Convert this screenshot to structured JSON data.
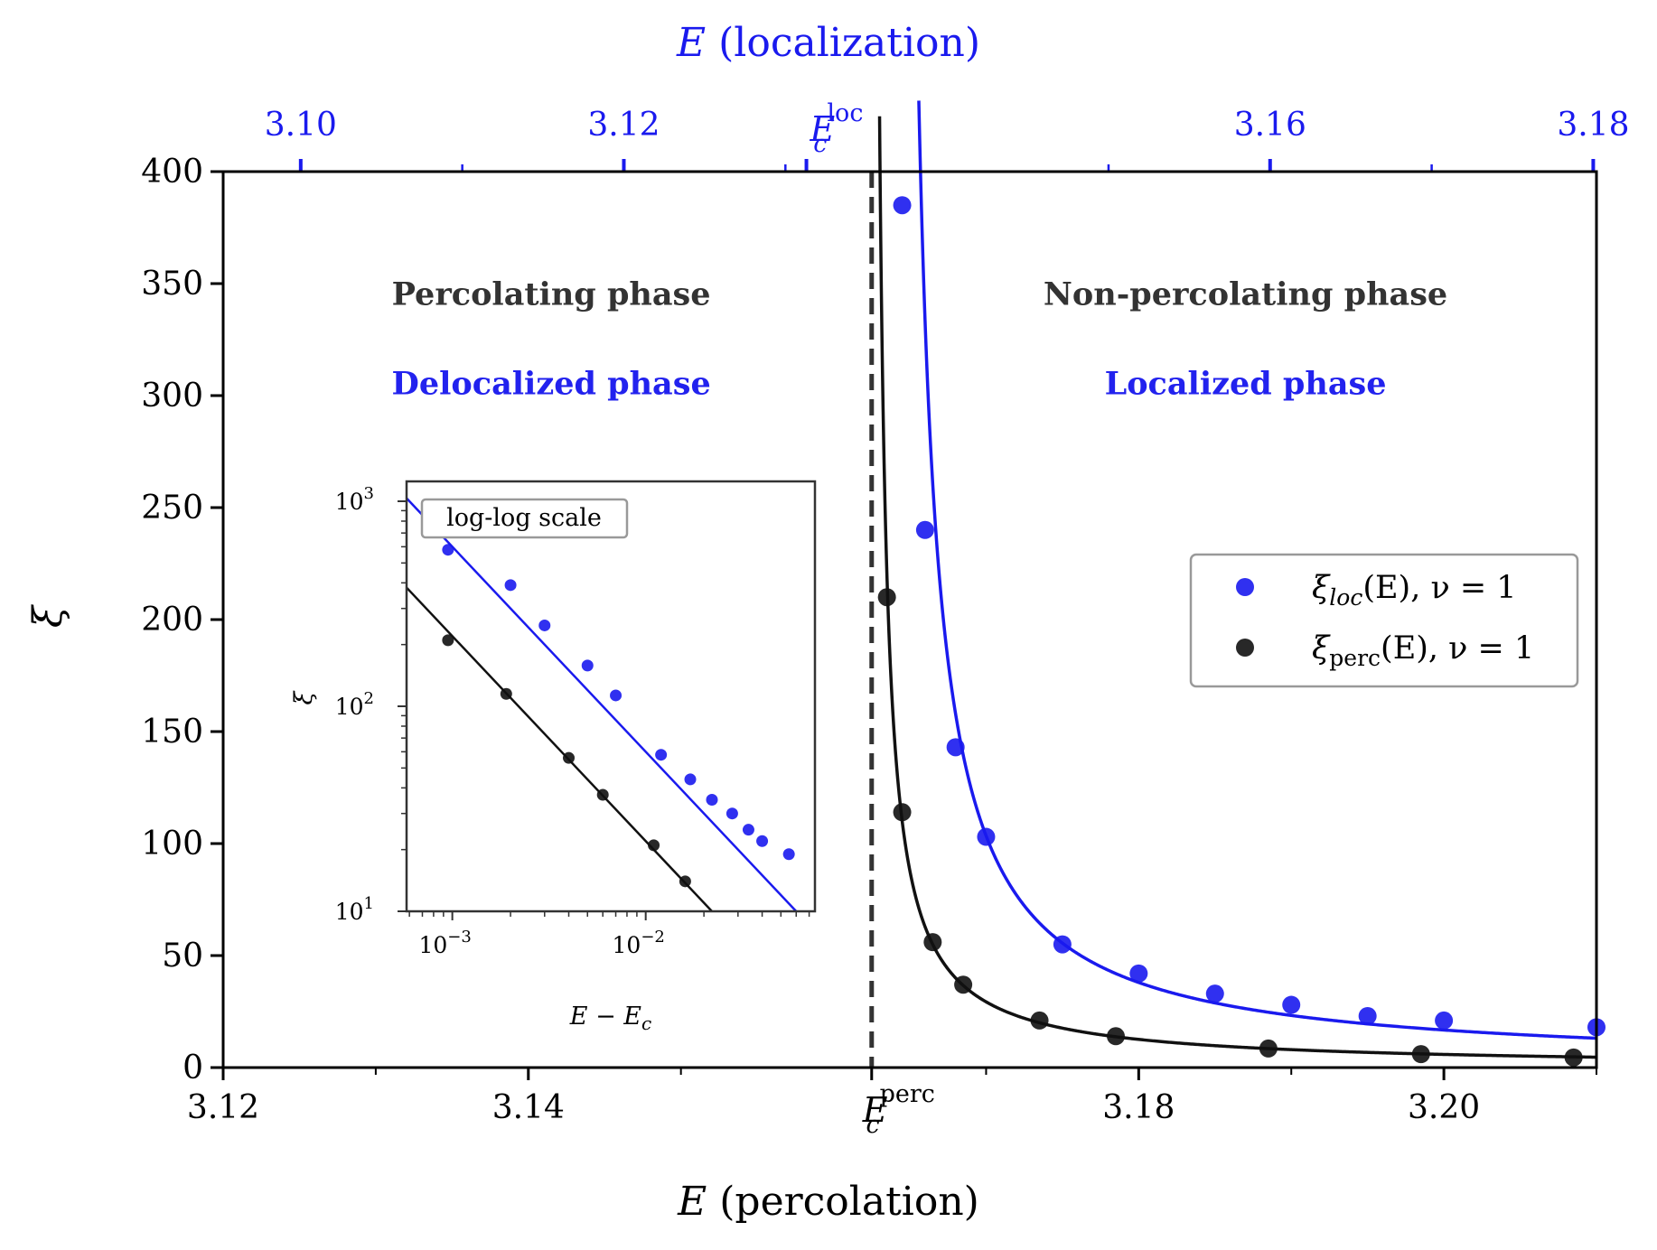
{
  "chart_data": [
    {
      "type": "scatter",
      "title": "",
      "xlabel": {
        "symbol": "E",
        "text": " (percolation)"
      },
      "x2label": {
        "symbol": "E",
        "text": " (localization)"
      },
      "ylabel": "ξ",
      "xlim": [
        3.12,
        3.21
      ],
      "x2lim": [
        3.0952,
        3.1802
      ],
      "ylim": [
        0,
        400
      ],
      "x_ticks": [
        {
          "value": 3.12,
          "label": "3.12"
        },
        {
          "value": 3.14,
          "label": "3.14"
        },
        {
          "value": 3.18,
          "label": "3.18"
        },
        {
          "value": 3.2,
          "label": "3.20"
        }
      ],
      "x_special_tick": {
        "value": 3.1625,
        "base": "E",
        "sub": "c",
        "sup": "perc"
      },
      "x_minor_ticks": [
        3.13,
        3.15,
        3.17,
        3.19,
        3.21
      ],
      "x2_ticks": [
        {
          "value": 3.1,
          "label": "3.10"
        },
        {
          "value": 3.12,
          "label": "3.12"
        },
        {
          "value": 3.16,
          "label": "3.16"
        },
        {
          "value": 3.18,
          "label": "3.18"
        }
      ],
      "x2_special_tick": {
        "value": 3.1313,
        "base": "E",
        "sub": "c",
        "sup": "loc"
      },
      "x2_minor_ticks": [
        3.11,
        3.13,
        3.15,
        3.17
      ],
      "y_ticks": [
        0,
        50,
        100,
        150,
        200,
        250,
        300,
        350,
        400
      ],
      "critical_line_x": 3.1625,
      "annotations": [
        {
          "text": "Percolating phase",
          "color": "#333333",
          "x": 3.1415,
          "y": 345
        },
        {
          "text": "Delocalized phase",
          "color": "#2222ee",
          "x": 3.1415,
          "y": 305
        },
        {
          "text": "Non-percolating phase",
          "color": "#333333",
          "x": 3.187,
          "y": 345
        },
        {
          "text": "Localized phase",
          "color": "#2222ee",
          "x": 3.187,
          "y": 305
        }
      ],
      "legend": {
        "placement": "center-right",
        "entries": [
          {
            "sym": "ξ",
            "sub": "loc",
            "sub_italic": true,
            "rest": "(E), ν = 1",
            "color": "#1a1aee"
          },
          {
            "sym": "ξ",
            "sub": "perc",
            "sub_italic": false,
            "rest": "(E), ν = 1",
            "color": "#111111"
          }
        ]
      },
      "series": [
        {
          "name": "ξ_loc(E), ν = 1",
          "color": "#1a1aee",
          "fit": {
            "x0": 3.1642,
            "A": 0.6,
            "nu": 1
          },
          "points": [
            {
              "x": 3.1645,
              "y": 385
            },
            {
              "x": 3.166,
              "y": 240
            },
            {
              "x": 3.168,
              "y": 143
            },
            {
              "x": 3.17,
              "y": 103
            },
            {
              "x": 3.175,
              "y": 55
            },
            {
              "x": 3.18,
              "y": 42
            },
            {
              "x": 3.185,
              "y": 33
            },
            {
              "x": 3.19,
              "y": 28
            },
            {
              "x": 3.195,
              "y": 23
            },
            {
              "x": 3.2,
              "y": 21
            },
            {
              "x": 3.21,
              "y": 18
            }
          ]
        },
        {
          "name": "ξ_perc(E), ν = 1",
          "color": "#111111",
          "fit": {
            "x0": 3.1625,
            "A": 0.22,
            "nu": 1
          },
          "points": [
            {
              "x": 3.1635,
              "y": 210
            },
            {
              "x": 3.1645,
              "y": 114
            },
            {
              "x": 3.1665,
              "y": 56
            },
            {
              "x": 3.1685,
              "y": 37
            },
            {
              "x": 3.1735,
              "y": 21
            },
            {
              "x": 3.1785,
              "y": 14
            },
            {
              "x": 3.1885,
              "y": 8.5
            },
            {
              "x": 3.1985,
              "y": 6
            },
            {
              "x": 3.2085,
              "y": 4.5
            }
          ]
        }
      ]
    },
    {
      "type": "scatter",
      "title": "log-log scale",
      "xscale": "log",
      "yscale": "log",
      "xlabel": {
        "a": "E",
        "minus": " − ",
        "b": "E",
        "sub": "c"
      },
      "ylabel": "ξ",
      "xlim": [
        0.00058,
        0.075
      ],
      "ylim": [
        10,
        1250
      ],
      "x_ticks": [
        {
          "value": 0.001,
          "base": "10",
          "exp": "−3"
        },
        {
          "value": 0.01,
          "base": "10",
          "exp": "−2"
        }
      ],
      "y_ticks": [
        {
          "value": 10,
          "base": "10",
          "exp": "1"
        },
        {
          "value": 100,
          "base": "10",
          "exp": "2"
        },
        {
          "value": 1000,
          "base": "10",
          "exp": "3"
        }
      ],
      "series": [
        {
          "name": "ξ_loc",
          "color": "#1a1aee",
          "fit": {
            "A": 0.6,
            "nu": 1
          },
          "points": [
            {
              "x": 0.00095,
              "y": 580
            },
            {
              "x": 0.002,
              "y": 390
            },
            {
              "x": 0.003,
              "y": 248
            },
            {
              "x": 0.005,
              "y": 158
            },
            {
              "x": 0.007,
              "y": 113
            },
            {
              "x": 0.012,
              "y": 58
            },
            {
              "x": 0.017,
              "y": 44
            },
            {
              "x": 0.022,
              "y": 35
            },
            {
              "x": 0.028,
              "y": 30
            },
            {
              "x": 0.034,
              "y": 25
            },
            {
              "x": 0.04,
              "y": 22
            },
            {
              "x": 0.055,
              "y": 19
            }
          ]
        },
        {
          "name": "ξ_perc",
          "color": "#111111",
          "fit": {
            "A": 0.22,
            "nu": 1
          },
          "points": [
            {
              "x": 0.00095,
              "y": 210
            },
            {
              "x": 0.0019,
              "y": 115
            },
            {
              "x": 0.004,
              "y": 56
            },
            {
              "x": 0.006,
              "y": 37
            },
            {
              "x": 0.011,
              "y": 21
            },
            {
              "x": 0.016,
              "y": 14
            }
          ]
        }
      ]
    }
  ]
}
